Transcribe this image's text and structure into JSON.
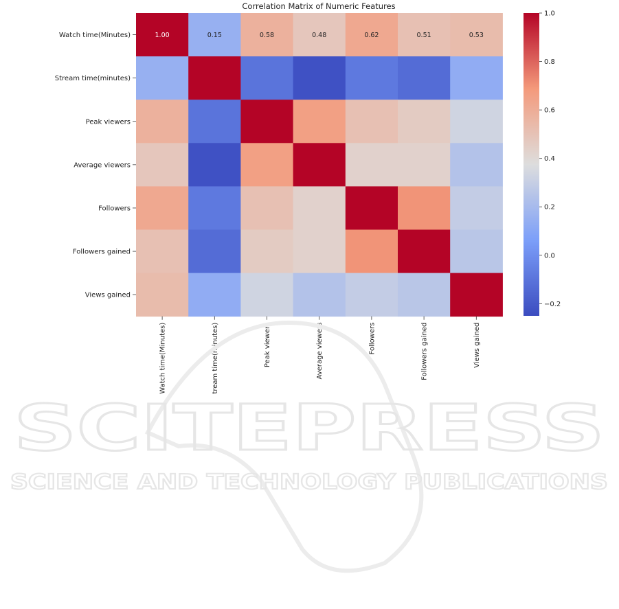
{
  "watermark": {
    "brand": "SCITEPRESS",
    "tagline": "SCIENCE AND TECHNOLOGY PUBLICATIONS"
  },
  "chart_data": {
    "type": "heatmap",
    "title": "Correlation Matrix of Numeric Features",
    "row_labels": [
      "Watch time(Minutes)",
      "Stream time(minutes)",
      "Peak viewers",
      "Average viewers",
      "Followers",
      "Followers gained",
      "Views gained"
    ],
    "col_labels": [
      "Watch time(Minutes)",
      "tream time(minutes)",
      "Peak viewers",
      "Average viewers",
      "Followers",
      "Followers gained",
      "Views gained"
    ],
    "values": [
      [
        1.0,
        0.15,
        0.58,
        0.48,
        0.62,
        0.51,
        0.53
      ],
      [
        0.15,
        1.0,
        -0.1,
        -0.23,
        -0.08,
        -0.13,
        0.13
      ],
      [
        0.58,
        -0.1,
        1.0,
        0.66,
        0.51,
        0.46,
        0.33
      ],
      [
        0.48,
        -0.23,
        0.66,
        1.0,
        0.43,
        0.43,
        0.24
      ],
      [
        0.62,
        -0.08,
        0.51,
        0.43,
        1.0,
        0.7,
        0.29
      ],
      [
        0.51,
        -0.13,
        0.46,
        0.43,
        0.7,
        1.0,
        0.26
      ],
      [
        0.53,
        0.13,
        0.33,
        0.24,
        0.29,
        0.26,
        1.0
      ]
    ],
    "annotated_row": 0,
    "colormap": "coolwarm",
    "colorbar": {
      "vmin": -0.25,
      "vmax": 1.0,
      "ticks": [
        1.0,
        0.8,
        0.6,
        0.4,
        0.2,
        0.0,
        -0.2
      ],
      "tick_labels": [
        "1.0",
        "0.8",
        "0.6",
        "0.4",
        "0.2",
        "0.0",
        "−0.2"
      ],
      "position": "right"
    },
    "grid": false
  }
}
